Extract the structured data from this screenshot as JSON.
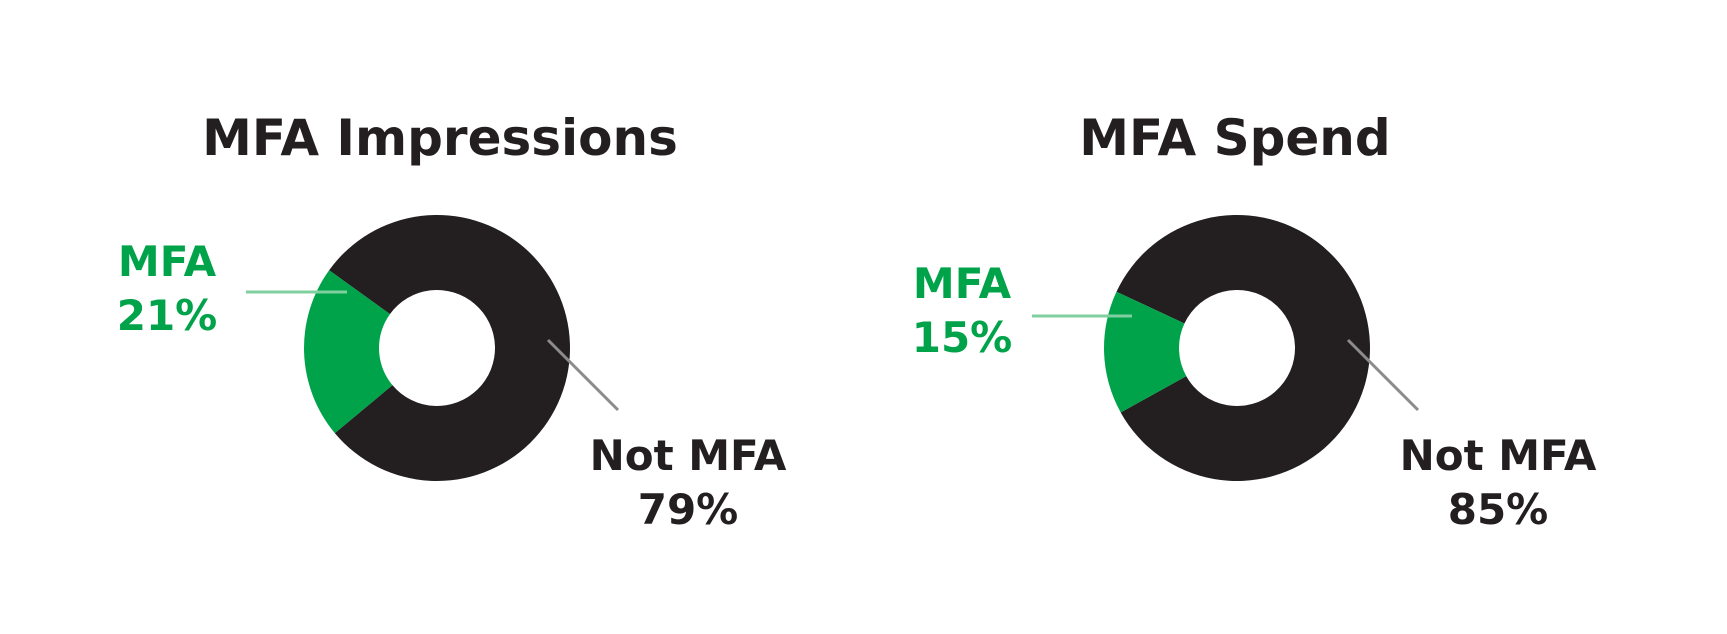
{
  "colors": {
    "mfa": "#00a34a",
    "not_mfa": "#231f20",
    "leader_mfa": "#7fcf9f",
    "leader_not_mfa": "#8c8c8c",
    "hole": "#ffffff"
  },
  "chart_data": [
    {
      "type": "pie",
      "title": "MFA Impressions",
      "slices": [
        {
          "label": "MFA",
          "value": 21,
          "value_label": "21%"
        },
        {
          "label": "Not MFA",
          "value": 79,
          "value_label": "79%"
        }
      ]
    },
    {
      "type": "pie",
      "title": "MFA Spend",
      "slices": [
        {
          "label": "MFA",
          "value": 15,
          "value_label": "15%"
        },
        {
          "label": "Not MFA",
          "value": 85,
          "value_label": "85%"
        }
      ]
    }
  ]
}
